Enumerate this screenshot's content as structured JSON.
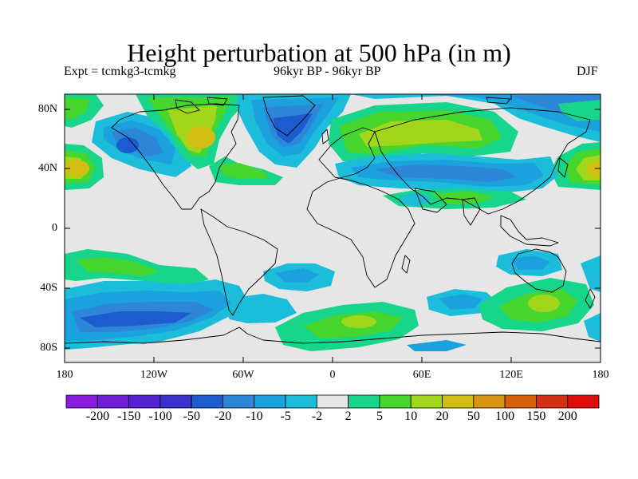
{
  "title": "Height perturbation at 500 hPa (in m)",
  "experiment": "Expt = tcmkg3-tcmkg",
  "period": "96kyr BP - 96kyr BP",
  "season": "DJF",
  "latitude_labels": [
    "80N",
    "40N",
    "0",
    "40S",
    "80S"
  ],
  "longitude_labels": [
    "180",
    "120W",
    "60W",
    "0",
    "60E",
    "120E",
    "180"
  ],
  "colorbar": {
    "labels": [
      "-200",
      "-150",
      "-100",
      "-50",
      "-20",
      "-10",
      "-5",
      "-2",
      "2",
      "5",
      "10",
      "20",
      "50",
      "100",
      "150",
      "200"
    ],
    "colors": [
      "#8a1ce0",
      "#6f1dd8",
      "#5420d2",
      "#3a31cc",
      "#1d5ccf",
      "#2d86d8",
      "#1aa1de",
      "#1cbddb",
      "#e6e6e6",
      "#17d58a",
      "#47d62e",
      "#a2d61a",
      "#d2be13",
      "#d79614",
      "#d6600c",
      "#d62e12",
      "#e00c0c"
    ]
  }
}
